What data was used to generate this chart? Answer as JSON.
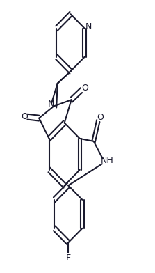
{
  "bg_color": "#ffffff",
  "line_color": "#1a1a2e",
  "line_width": 1.5,
  "figsize": [
    2.23,
    3.92
  ],
  "dpi": 100,
  "xlim": [
    0,
    1
  ],
  "ylim": [
    0,
    1
  ]
}
